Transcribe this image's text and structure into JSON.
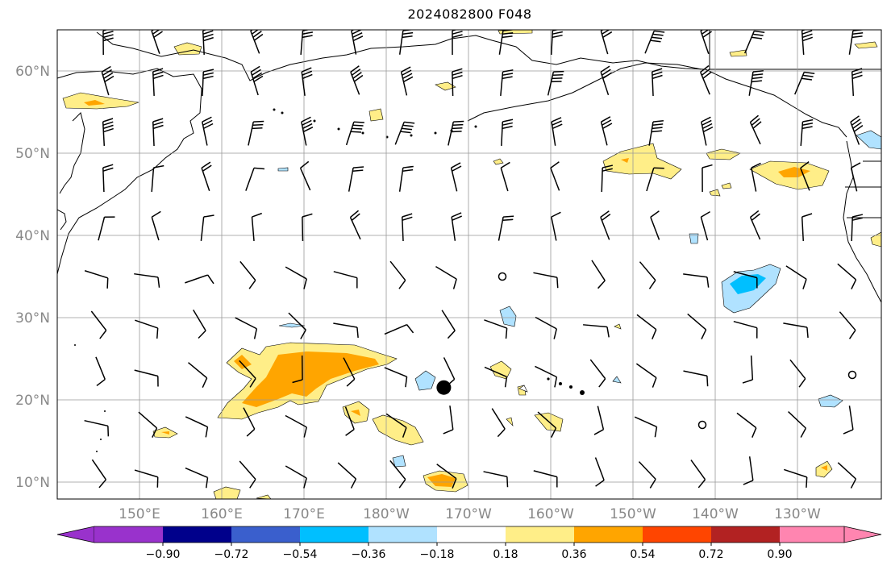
{
  "title": "2024082800 F048",
  "map": {
    "lat_labels": [
      {
        "lat": 60,
        "label": "60°N"
      },
      {
        "lat": 50,
        "label": "50°N"
      },
      {
        "lat": 40,
        "label": "40°N"
      },
      {
        "lat": 30,
        "label": "30°N"
      },
      {
        "lat": 20,
        "label": "20°N"
      },
      {
        "lat": 10,
        "label": "10°N"
      }
    ],
    "lon_labels": [
      {
        "lon": 150,
        "label": "150°E"
      },
      {
        "lon": 160,
        "label": "160°E"
      },
      {
        "lon": 170,
        "label": "170°E"
      },
      {
        "lon": 180,
        "label": "180°W"
      },
      {
        "lon": 190,
        "label": "170°W"
      },
      {
        "lon": 200,
        "label": "160°W"
      },
      {
        "lon": 210,
        "label": "150°W"
      },
      {
        "lon": 220,
        "label": "140°W"
      },
      {
        "lon": 230,
        "label": "130°W"
      }
    ],
    "extent": {
      "lon_min": 140,
      "lon_max": 240,
      "lat_min": 8,
      "lat_max": 64
    },
    "storm_marker": {
      "lon": 187,
      "lat": 21.5
    }
  },
  "colorbar": {
    "colors": [
      "#9932cc",
      "#00008b",
      "#3a5fcd",
      "#00bfff",
      "#b0e2ff",
      "#ffffff",
      "#ffee88",
      "#ffa500",
      "#ff4500",
      "#b22222",
      "#ff85b0"
    ],
    "ticks": [
      "−0.90",
      "−0.72",
      "−0.54",
      "−0.36",
      "−0.18",
      "0.18",
      "0.36",
      "0.54",
      "0.72",
      "0.90"
    ]
  }
}
